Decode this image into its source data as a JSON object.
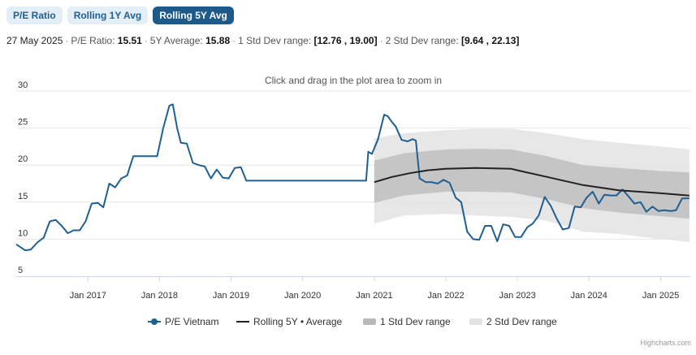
{
  "tabs": [
    {
      "label": "P/E Ratio",
      "active": false
    },
    {
      "label": "Rolling 1Y Avg",
      "active": false
    },
    {
      "label": "Rolling 5Y Avg",
      "active": true
    }
  ],
  "summary": {
    "date": "27 May 2025",
    "pe_label": "P/E Ratio:",
    "pe_value": "15.51",
    "avg_label": "5Y Average:",
    "avg_value": "15.88",
    "std1_label": "1 Std Dev range:",
    "std1_value": "[12.76 , 19.00]",
    "std2_label": "2 Std Dev range:",
    "std2_value": "[9.64 , 22.13]"
  },
  "zoom_hint": "Click and drag in the plot area to zoom in",
  "credit": "Highcharts.com",
  "colors": {
    "pe_line": "#1f5f91",
    "avg_line": "#222222",
    "std1_band": "#b9b9b9",
    "std2_band": "#e3e3e3",
    "grid": "#e6e6e6"
  },
  "chart_data": {
    "type": "line",
    "x_type": "date",
    "xlim": [
      "2016-01-01",
      "2025-06-01"
    ],
    "ylim": [
      5,
      30
    ],
    "y_ticks": [
      5,
      10,
      15,
      20,
      25,
      30
    ],
    "x_ticks": [
      {
        "date": "2017-01-01",
        "label": "Jan 2017"
      },
      {
        "date": "2018-01-01",
        "label": "Jan 2018"
      },
      {
        "date": "2019-01-01",
        "label": "Jan 2019"
      },
      {
        "date": "2020-01-01",
        "label": "Jan 2020"
      },
      {
        "date": "2021-01-01",
        "label": "Jan 2021"
      },
      {
        "date": "2022-01-01",
        "label": "Jan 2022"
      },
      {
        "date": "2023-01-01",
        "label": "Jan 2023"
      },
      {
        "date": "2024-01-01",
        "label": "Jan 2024"
      },
      {
        "date": "2025-01-01",
        "label": "Jan 2025"
      }
    ],
    "grid": true,
    "legend_position": "bottom",
    "series": [
      {
        "name": "P/E Vietnam",
        "kind": "line",
        "points": [
          [
            "2016-01-01",
            9.3
          ],
          [
            "2016-02-15",
            8.5
          ],
          [
            "2016-03-15",
            8.6
          ],
          [
            "2016-04-20",
            9.6
          ],
          [
            "2016-05-20",
            10.2
          ],
          [
            "2016-06-20",
            12.4
          ],
          [
            "2016-07-20",
            12.6
          ],
          [
            "2016-08-20",
            11.8
          ],
          [
            "2016-09-20",
            10.8
          ],
          [
            "2016-10-20",
            11.2
          ],
          [
            "2016-11-20",
            11.2
          ],
          [
            "2016-12-20",
            12.4
          ],
          [
            "2017-01-20",
            14.8
          ],
          [
            "2017-02-20",
            14.9
          ],
          [
            "2017-03-20",
            14.3
          ],
          [
            "2017-04-20",
            17.5
          ],
          [
            "2017-05-20",
            17.0
          ],
          [
            "2017-06-20",
            18.2
          ],
          [
            "2017-07-20",
            18.6
          ],
          [
            "2017-08-20",
            21.2
          ],
          [
            "2017-09-20",
            21.2
          ],
          [
            "2017-10-20",
            21.2
          ],
          [
            "2017-11-20",
            21.2
          ],
          [
            "2017-12-20",
            21.2
          ],
          [
            "2018-01-20",
            25.0
          ],
          [
            "2018-02-20",
            28.0
          ],
          [
            "2018-03-10",
            28.2
          ],
          [
            "2018-04-01",
            25.0
          ],
          [
            "2018-04-20",
            23.0
          ],
          [
            "2018-05-20",
            22.9
          ],
          [
            "2018-06-20",
            20.3
          ],
          [
            "2018-07-20",
            20.0
          ],
          [
            "2018-08-20",
            19.8
          ],
          [
            "2018-09-20",
            18.2
          ],
          [
            "2018-10-20",
            19.4
          ],
          [
            "2018-11-20",
            18.3
          ],
          [
            "2018-12-20",
            18.2
          ],
          [
            "2019-01-20",
            19.6
          ],
          [
            "2019-02-20",
            19.7
          ],
          [
            "2019-03-20",
            17.9
          ],
          [
            "2019-06-01",
            17.9
          ],
          [
            "2019-12-01",
            17.9
          ],
          [
            "2020-06-01",
            17.9
          ],
          [
            "2020-10-01",
            17.9
          ],
          [
            "2020-11-20",
            17.9
          ],
          [
            "2020-12-01",
            21.8
          ],
          [
            "2020-12-20",
            21.5
          ],
          [
            "2021-01-20",
            23.5
          ],
          [
            "2021-02-20",
            26.8
          ],
          [
            "2021-03-10",
            26.6
          ],
          [
            "2021-04-01",
            25.8
          ],
          [
            "2021-04-20",
            25.2
          ],
          [
            "2021-05-20",
            23.4
          ],
          [
            "2021-06-20",
            23.2
          ],
          [
            "2021-07-15",
            23.5
          ],
          [
            "2021-08-01",
            23.3
          ],
          [
            "2021-08-20",
            18.2
          ],
          [
            "2021-09-20",
            17.7
          ],
          [
            "2021-10-20",
            17.7
          ],
          [
            "2021-11-20",
            17.5
          ],
          [
            "2021-12-20",
            18.0
          ],
          [
            "2022-01-20",
            17.6
          ],
          [
            "2022-02-20",
            15.6
          ],
          [
            "2022-03-20",
            15.0
          ],
          [
            "2022-04-20",
            11.0
          ],
          [
            "2022-05-20",
            10.0
          ],
          [
            "2022-06-20",
            9.9
          ],
          [
            "2022-07-20",
            11.8
          ],
          [
            "2022-08-20",
            11.8
          ],
          [
            "2022-09-20",
            9.7
          ],
          [
            "2022-10-20",
            12.0
          ],
          [
            "2022-11-20",
            11.8
          ],
          [
            "2022-12-20",
            10.3
          ],
          [
            "2023-01-20",
            10.3
          ],
          [
            "2023-02-20",
            11.6
          ],
          [
            "2023-03-20",
            12.1
          ],
          [
            "2023-04-20",
            13.2
          ],
          [
            "2023-05-20",
            15.7
          ],
          [
            "2023-06-20",
            14.5
          ],
          [
            "2023-07-20",
            12.8
          ],
          [
            "2023-08-20",
            11.3
          ],
          [
            "2023-09-20",
            11.5
          ],
          [
            "2023-10-20",
            14.4
          ],
          [
            "2023-11-20",
            14.3
          ],
          [
            "2023-12-20",
            15.6
          ],
          [
            "2024-01-20",
            16.4
          ],
          [
            "2024-02-20",
            14.8
          ],
          [
            "2024-03-20",
            16.0
          ],
          [
            "2024-04-20",
            15.9
          ],
          [
            "2024-05-20",
            15.9
          ],
          [
            "2024-06-20",
            16.7
          ],
          [
            "2024-07-20",
            15.8
          ],
          [
            "2024-08-20",
            14.8
          ],
          [
            "2024-09-20",
            15.0
          ],
          [
            "2024-10-20",
            13.7
          ],
          [
            "2024-11-20",
            14.4
          ],
          [
            "2024-12-20",
            13.8
          ],
          [
            "2025-01-20",
            13.9
          ],
          [
            "2025-02-20",
            13.8
          ],
          [
            "2025-03-20",
            13.9
          ],
          [
            "2025-04-20",
            15.5
          ],
          [
            "2025-05-27",
            15.51
          ]
        ]
      },
      {
        "name": "Rolling 5Y • Average",
        "kind": "line",
        "points": [
          [
            "2021-01-01",
            17.7
          ],
          [
            "2021-04-01",
            18.4
          ],
          [
            "2021-07-01",
            18.9
          ],
          [
            "2021-10-01",
            19.3
          ],
          [
            "2022-01-01",
            19.5
          ],
          [
            "2022-06-01",
            19.6
          ],
          [
            "2022-12-01",
            19.5
          ],
          [
            "2023-01-01",
            19.3
          ],
          [
            "2023-06-01",
            18.4
          ],
          [
            "2023-12-01",
            17.3
          ],
          [
            "2024-06-01",
            16.6
          ],
          [
            "2025-01-01",
            16.2
          ],
          [
            "2025-05-27",
            15.88
          ]
        ]
      },
      {
        "name": "1 Std Dev range",
        "kind": "band",
        "points": [
          [
            "2021-01-01",
            14.9,
            20.6
          ],
          [
            "2021-06-01",
            15.9,
            21.6
          ],
          [
            "2022-01-01",
            16.4,
            22.1
          ],
          [
            "2022-06-01",
            16.4,
            22.2
          ],
          [
            "2022-12-01",
            16.3,
            22.1
          ],
          [
            "2023-06-01",
            15.4,
            21.2
          ],
          [
            "2023-12-01",
            14.2,
            20.0
          ],
          [
            "2024-06-01",
            13.6,
            19.6
          ],
          [
            "2025-01-01",
            13.1,
            19.2
          ],
          [
            "2025-05-27",
            12.76,
            19.0
          ]
        ]
      },
      {
        "name": "2 Std Dev range",
        "kind": "band",
        "points": [
          [
            "2021-01-01",
            12.1,
            23.6
          ],
          [
            "2021-06-01",
            13.2,
            24.3
          ],
          [
            "2022-01-01",
            13.4,
            24.7
          ],
          [
            "2022-06-01",
            13.2,
            24.9
          ],
          [
            "2022-12-01",
            13.0,
            24.9
          ],
          [
            "2023-06-01",
            12.5,
            24.3
          ],
          [
            "2023-12-01",
            11.0,
            23.5
          ],
          [
            "2024-06-01",
            10.7,
            23.0
          ],
          [
            "2025-01-01",
            10.0,
            22.5
          ],
          [
            "2025-05-27",
            9.64,
            22.13
          ]
        ]
      }
    ]
  }
}
